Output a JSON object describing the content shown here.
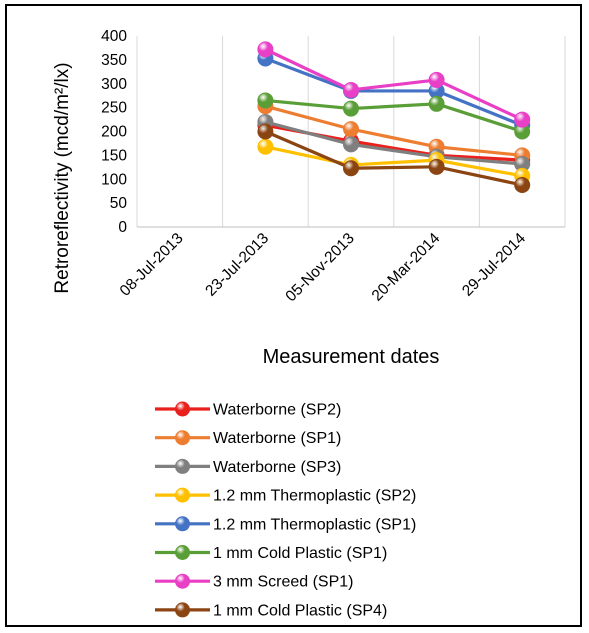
{
  "chart_data": {
    "type": "line",
    "ylabel": "Retroreflectivity (mcd/m²/lx)",
    "xlabel": "Measurement dates",
    "categories": [
      "08-Jul-2013",
      "23-Jul-2013",
      "05-Nov-2013",
      "20-Mar-2014",
      "29-Jul-2014"
    ],
    "ylim": [
      0,
      400
    ],
    "yticks": [
      0,
      50,
      100,
      150,
      200,
      250,
      300,
      350,
      400
    ],
    "grid": "vertical",
    "legend_position": "bottom",
    "series": [
      {
        "name": "Waterborne (SP2)",
        "color": "#e8211d",
        "values": [
          null,
          213,
          180,
          150,
          140
        ]
      },
      {
        "name": "Waterborne (SP1)",
        "color": "#ed7d31",
        "values": [
          null,
          253,
          205,
          168,
          150
        ]
      },
      {
        "name": "Waterborne (SP3)",
        "color": "#7f7f7f",
        "values": [
          null,
          220,
          173,
          147,
          132
        ]
      },
      {
        "name": "1.2 mm Thermoplastic (SP2)",
        "color": "#ffc000",
        "values": [
          null,
          168,
          130,
          140,
          107
        ]
      },
      {
        "name": "1.2 mm Thermoplastic (SP1)",
        "color": "#4472c4",
        "values": [
          null,
          353,
          285,
          285,
          213
        ]
      },
      {
        "name": "1 mm Cold Plastic (SP1)",
        "color": "#5a9e38",
        "values": [
          null,
          265,
          248,
          258,
          200
        ]
      },
      {
        "name": "3 mm Screed (SP1)",
        "color": "#e83fc6",
        "values": [
          null,
          372,
          287,
          308,
          225
        ]
      },
      {
        "name": "1 mm Cold Plastic (SP4)",
        "color": "#8b4513",
        "values": [
          null,
          200,
          123,
          126,
          88
        ]
      }
    ]
  }
}
